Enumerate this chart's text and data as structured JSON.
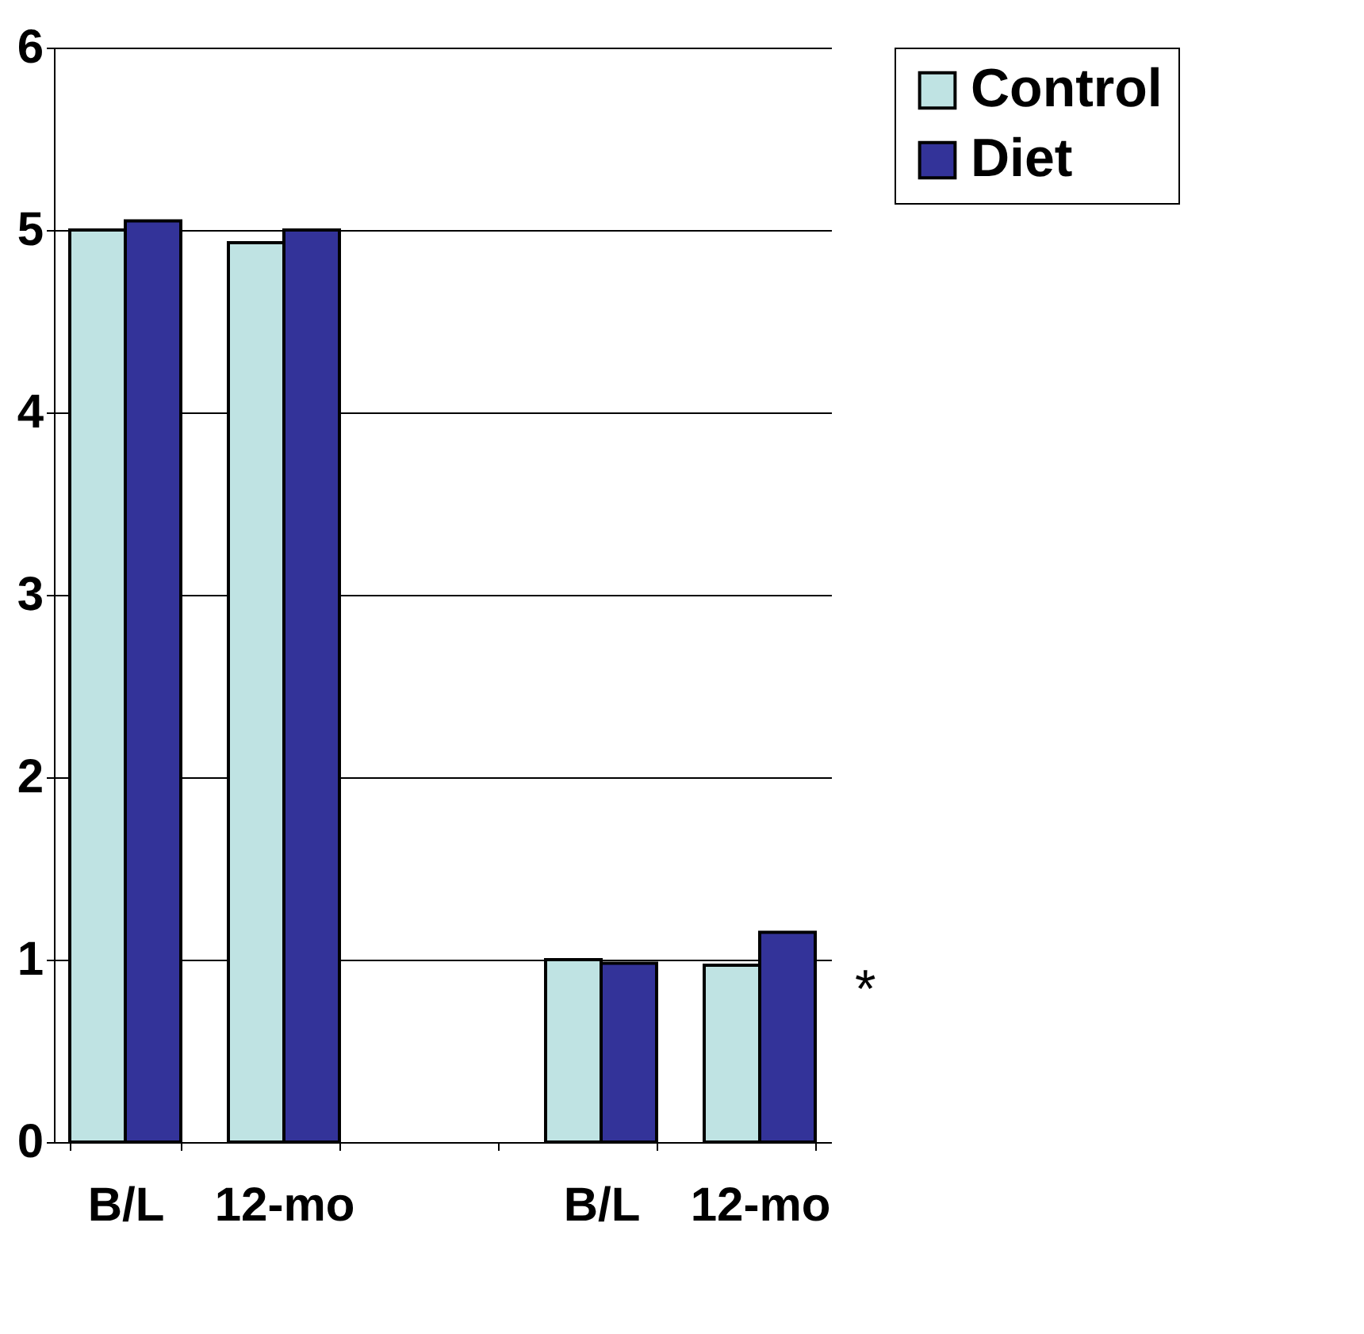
{
  "chart_data": {
    "type": "bar",
    "categories": [
      "B/L",
      "12-mo",
      null,
      "B/L",
      "12-mo"
    ],
    "series": [
      {
        "name": "Control",
        "color": "#bfe3e3",
        "values": [
          5.0,
          4.93,
          null,
          1.0,
          0.97
        ]
      },
      {
        "name": "Diet",
        "color": "#333399",
        "values": [
          5.05,
          5.0,
          null,
          0.98,
          1.15
        ]
      }
    ],
    "ylim": [
      0,
      6
    ],
    "yticks": [
      0,
      1,
      2,
      3,
      4,
      5,
      6
    ],
    "grid": "y",
    "legend": "right",
    "annotations": [
      "*"
    ]
  }
}
